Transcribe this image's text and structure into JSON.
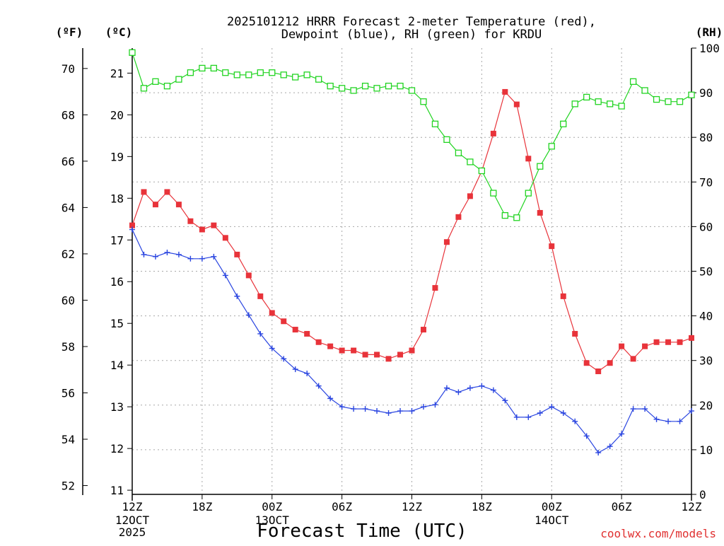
{
  "chart_data": {
    "type": "line",
    "title": [
      "2025101212 HRRR Forecast 2-meter Temperature (red),",
      "Dewpoint (blue), RH (green) for KRDU"
    ],
    "xlabel": "Forecast Time (UTC)",
    "credit": "coolwx.com/models",
    "units": {
      "fahrenheit": "(ºF)",
      "celsius": "(ºC)",
      "rh": "(RH)"
    },
    "hours": [
      0,
      1,
      2,
      3,
      4,
      5,
      6,
      7,
      8,
      9,
      10,
      11,
      12,
      13,
      14,
      15,
      16,
      17,
      18,
      19,
      20,
      21,
      22,
      23,
      24,
      25,
      26,
      27,
      28,
      29,
      30,
      31,
      32,
      33,
      34,
      35,
      36,
      37,
      38,
      39,
      40,
      41,
      42,
      43,
      44,
      45,
      46,
      47,
      48
    ],
    "x_ticks": [
      {
        "hour": 0,
        "label": "12Z",
        "sub": [
          "12OCT",
          "2025"
        ]
      },
      {
        "hour": 6,
        "label": "18Z",
        "sub": []
      },
      {
        "hour": 12,
        "label": "00Z",
        "sub": [
          "13OCT"
        ]
      },
      {
        "hour": 18,
        "label": "06Z",
        "sub": []
      },
      {
        "hour": 24,
        "label": "12Z",
        "sub": []
      },
      {
        "hour": 30,
        "label": "18Z",
        "sub": []
      },
      {
        "hour": 36,
        "label": "00Z",
        "sub": [
          "14OCT"
        ]
      },
      {
        "hour": 42,
        "label": "06Z",
        "sub": []
      },
      {
        "hour": 48,
        "label": "12Z",
        "sub": []
      }
    ],
    "y_celsius": {
      "range": [
        10.9,
        21.6
      ],
      "ticks": [
        11,
        12,
        13,
        14,
        15,
        16,
        17,
        18,
        19,
        20,
        21
      ]
    },
    "y_fahrenheit": {
      "ticks": [
        52,
        54,
        56,
        58,
        60,
        62,
        64,
        66,
        68,
        70
      ]
    },
    "y_rh": {
      "range": [
        0,
        100
      ],
      "ticks": [
        0,
        10,
        20,
        30,
        40,
        50,
        60,
        70,
        80,
        90,
        100
      ]
    },
    "series": [
      {
        "name": "Temperature",
        "color": "#e8333a",
        "marker": "filled-square",
        "axis": "celsius",
        "values": [
          17.35,
          18.15,
          17.85,
          18.15,
          17.85,
          17.45,
          17.25,
          17.35,
          17.05,
          16.65,
          16.15,
          15.65,
          15.25,
          15.05,
          14.85,
          14.75,
          14.55,
          14.45,
          14.35,
          14.35,
          14.25,
          14.25,
          14.15,
          14.25,
          14.35,
          14.85,
          15.85,
          16.95,
          17.55,
          18.05,
          18.65,
          19.55,
          20.55,
          20.25,
          18.95,
          17.65,
          16.85,
          15.65,
          14.75,
          14.05,
          13.85,
          14.05,
          14.45,
          14.15,
          14.45,
          14.55,
          14.55,
          14.55,
          14.65
        ]
      },
      {
        "name": "Dewpoint",
        "color": "#2a45e0",
        "marker": "plus",
        "axis": "celsius",
        "values": [
          17.25,
          16.65,
          16.6,
          16.7,
          16.65,
          16.55,
          16.55,
          16.6,
          16.15,
          15.65,
          15.2,
          14.75,
          14.4,
          14.15,
          13.9,
          13.8,
          13.5,
          13.2,
          13.0,
          12.95,
          12.95,
          12.9,
          12.85,
          12.9,
          12.9,
          13.0,
          13.05,
          13.45,
          13.35,
          13.45,
          13.5,
          13.4,
          13.15,
          12.75,
          12.75,
          12.85,
          13.0,
          12.85,
          12.65,
          12.3,
          11.9,
          12.05,
          12.35,
          12.95,
          12.95,
          12.7,
          12.65,
          12.65,
          12.9
        ]
      },
      {
        "name": "RH",
        "color": "#22d422",
        "marker": "open-square",
        "axis": "rh",
        "values": [
          99,
          91,
          92.5,
          91.5,
          93,
          94.5,
          95.5,
          95.5,
          94.5,
          94,
          94,
          94.5,
          94.5,
          94,
          93.5,
          94,
          93,
          91.5,
          91,
          90.5,
          91.5,
          91,
          91.5,
          91.5,
          90.5,
          88,
          83,
          79.5,
          76.5,
          74.5,
          72.5,
          67.5,
          62.5,
          62,
          67.5,
          73.5,
          78,
          83,
          87.5,
          89,
          88,
          87.5,
          87,
          92.5,
          90.5,
          88.5,
          88,
          88,
          89.5
        ]
      }
    ]
  }
}
